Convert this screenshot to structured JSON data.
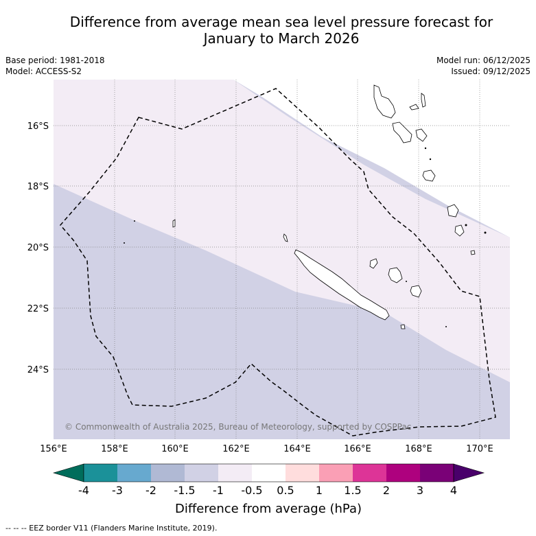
{
  "title": {
    "line1": "Difference from average mean sea level pressure forecast for",
    "line2": "January to March 2026"
  },
  "meta": {
    "base_period": "Base period: 1981-2018",
    "model": "Model: ACCESS-S2",
    "model_run": "Model run: 06/12/2025",
    "issued": "Issued: 09/12/2025"
  },
  "map": {
    "lon_labels": [
      "156°E",
      "158°E",
      "160°E",
      "162°E",
      "164°E",
      "166°E",
      "168°E",
      "170°E"
    ],
    "lat_labels": [
      "16°S",
      "18°S",
      "20°S",
      "22°S",
      "24°S"
    ],
    "copyright": "© Commonwealth of Australia 2025, Bureau of Meteorology, supported by COSPPac",
    "colors": {
      "band_minus1_to_minus05": "#f3ecf5",
      "band_minus15_to_minus1": "#d1d1e5"
    }
  },
  "colorbar": {
    "title": "Difference from average (hPa)",
    "tick_labels": [
      "-4",
      "-3",
      "-2",
      "-1.5",
      "-1",
      "-0.5",
      "0.5",
      "1",
      "1.5",
      "2",
      "3",
      "4"
    ],
    "colors": [
      "#006d5b",
      "#1b9199",
      "#67a9cf",
      "#b0b9d4",
      "#d1d1e5",
      "#f3ecf5",
      "#ffffff",
      "#ffdddd",
      "#fa9fb5",
      "#dd3497",
      "#ae017e",
      "#7a0177",
      "#49006a"
    ]
  },
  "footnote": "-- -- -- EEZ border V11 (Flanders Marine Institute, 2019)."
}
